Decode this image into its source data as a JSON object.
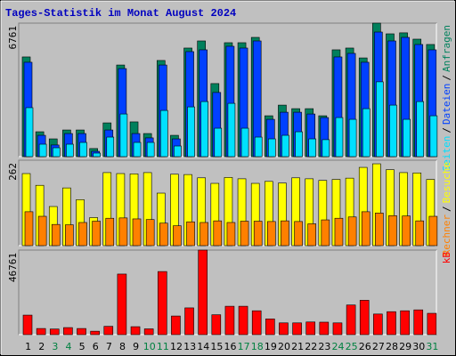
{
  "chart_data": [
    {
      "type": "bar",
      "title": "Tages-Statistik im Monat August 2024",
      "series": [
        {
          "name": "Anfragen",
          "color": "#00805c",
          "values": [
            5050,
            1260,
            900,
            1350,
            1350,
            410,
            1710,
            4640,
            1760,
            1170,
            4870,
            1080,
            5500,
            5860,
            3700,
            5770,
            5770,
            6040,
            2070,
            2610,
            2430,
            2430,
            2070,
            5410,
            5500,
            5000,
            6761,
            6220,
            6270,
            5950,
            5680
          ]
        },
        {
          "name": "Dateien",
          "color": "#0040ff",
          "values": [
            4780,
            1080,
            590,
            1170,
            1170,
            270,
            1350,
            4460,
            1170,
            950,
            4640,
            900,
            5320,
            5410,
            3250,
            5590,
            5500,
            5860,
            1890,
            2250,
            2250,
            2160,
            1980,
            5050,
            5230,
            4780,
            6310,
            5860,
            6040,
            5680,
            5410
          ]
        },
        {
          "name": "Seiten",
          "color": "#00e0ff",
          "values": [
            2480,
            630,
            450,
            630,
            720,
            180,
            990,
            2160,
            720,
            720,
            2340,
            540,
            2520,
            2790,
            1440,
            2700,
            1440,
            990,
            900,
            1080,
            1260,
            900,
            860,
            1980,
            1890,
            2430,
            3790,
            2610,
            1890,
            2790,
            2070
          ]
        }
      ],
      "ylim": [
        0,
        6761
      ],
      "yticks": [
        6761
      ],
      "legend_separator": "/"
    },
    {
      "type": "bar",
      "series": [
        {
          "name": "Besuche",
          "color": "#ffff00",
          "values": [
            221,
            185,
            120,
            177,
            141,
            86,
            224,
            221,
            220,
            224,
            161,
            219,
            218,
            208,
            191,
            209,
            205,
            191,
            197,
            192,
            208,
            205,
            200,
            203,
            207,
            240,
            251,
            233,
            224,
            223,
            203
          ]
        },
        {
          "name": "Rechner",
          "color": "#ff8000",
          "values": [
            104,
            90,
            65,
            64,
            71,
            75,
            84,
            85,
            82,
            80,
            69,
            61,
            73,
            71,
            76,
            71,
            75,
            75,
            74,
            76,
            74,
            67,
            79,
            84,
            88,
            104,
            100,
            92,
            91,
            76,
            90
          ]
        }
      ],
      "ylim": [
        0,
        262
      ],
      "yticks": [
        262
      ],
      "legend_separator": "/"
    },
    {
      "type": "bar",
      "categories": [
        "1",
        "2",
        "3",
        "4",
        "5",
        "6",
        "7",
        "8",
        "9",
        "10",
        "11",
        "12",
        "13",
        "14",
        "15",
        "16",
        "17",
        "18",
        "19",
        "20",
        "21",
        "22",
        "23",
        "24",
        "25",
        "26",
        "27",
        "28",
        "29",
        "30",
        "31"
      ],
      "category_colors": [
        "#000000",
        "#000000",
        "#008040",
        "#008040",
        "#000000",
        "#000000",
        "#000000",
        "#000000",
        "#000000",
        "#008040",
        "#008040",
        "#000000",
        "#000000",
        "#000000",
        "#000000",
        "#000000",
        "#008040",
        "#008040",
        "#000000",
        "#000000",
        "#000000",
        "#000000",
        "#000000",
        "#008040",
        "#008040",
        "#000000",
        "#000000",
        "#000000",
        "#000000",
        "#000000",
        "#008040"
      ],
      "series": [
        {
          "name": "kB",
          "color": "#ff0000",
          "values": [
            10800,
            3400,
            3100,
            3900,
            3400,
            1900,
            4600,
            33500,
            4400,
            3200,
            34900,
            10300,
            14800,
            46761,
            11000,
            15700,
            15700,
            13200,
            8700,
            6500,
            6500,
            7000,
            6900,
            6500,
            16400,
            19000,
            11400,
            12700,
            13200,
            13700,
            11800
          ]
        }
      ],
      "ylim": [
        0,
        46761
      ],
      "yticks": [
        46761
      ]
    }
  ]
}
